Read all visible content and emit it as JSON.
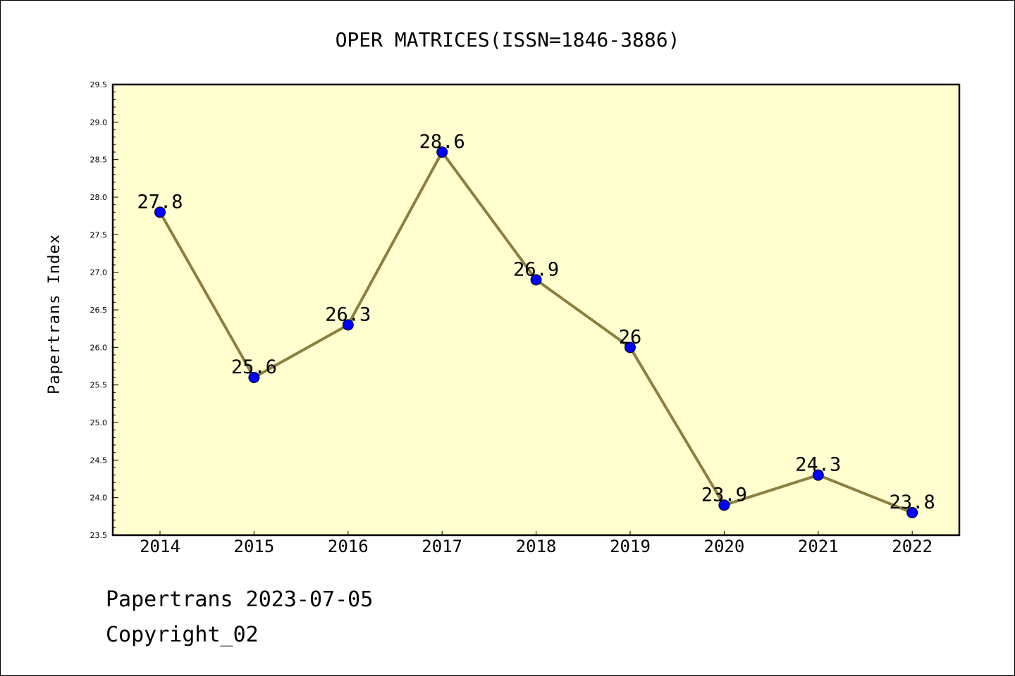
{
  "chart_data": {
    "type": "line",
    "title": "OPER MATRICES(ISSN=1846-3886)",
    "ylabel": "Papertrans Index",
    "xlabel": "",
    "categories": [
      "2014",
      "2015",
      "2016",
      "2017",
      "2018",
      "2019",
      "2020",
      "2021",
      "2022"
    ],
    "series": [
      {
        "values": [
          27.8,
          25.6,
          26.3,
          28.6,
          26.9,
          26.0,
          23.9,
          24.3,
          23.8
        ],
        "labels": [
          "27.8",
          "25.6",
          "26.3",
          "28.6",
          "26.9",
          "26",
          "23.9",
          "24.3",
          "23.8"
        ]
      }
    ],
    "ylim": [
      23.5,
      29.5
    ],
    "yticks": [
      "23.5",
      "24.0",
      "24.5",
      "25.0",
      "25.5",
      "26.0",
      "26.5",
      "27.0",
      "27.5",
      "28.0",
      "28.5",
      "29.0",
      "29.5"
    ],
    "grid": false,
    "colors": {
      "plot_background": "#ffffd0",
      "line": "#8b8040",
      "marker": "#0000ff"
    }
  },
  "footer": {
    "date_text": "Papertrans 2023-07-05",
    "copyright_text": "Copyright_02"
  }
}
